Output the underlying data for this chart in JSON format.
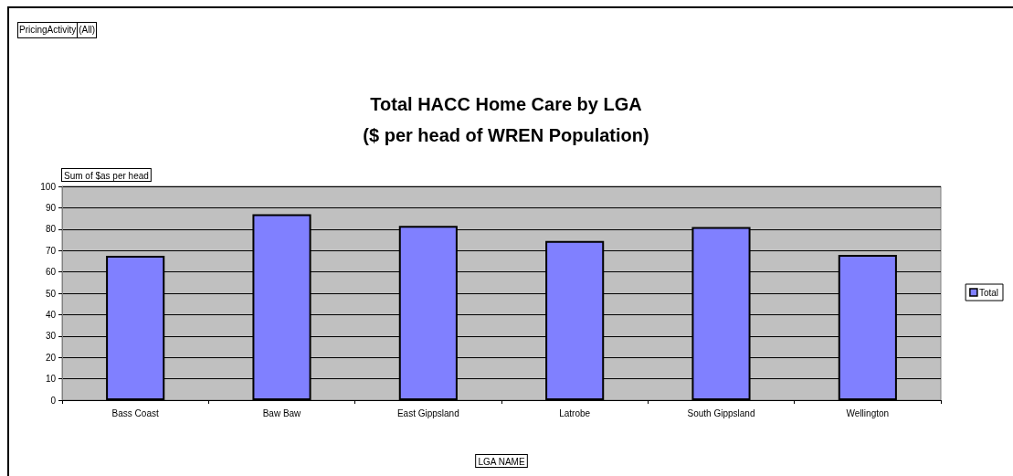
{
  "chart_data": {
    "type": "bar",
    "title": "Total HACC Home Care by LGA\n($ per head of WREN Population)",
    "annotations": [
      "PricingActivity",
      "(All)"
    ],
    "xlabel": "LGA NAME",
    "ylabel": "Sum of $as per head",
    "categories": [
      "Bass Coast",
      "Baw Baw",
      "East Gippsland",
      "Latrobe",
      "South Gippsland",
      "Wellington"
    ],
    "series": [
      {
        "name": "Total",
        "color": "#8080ff",
        "values": [
          67.5,
          87,
          81.5,
          74.5,
          81,
          68
        ]
      }
    ],
    "ylim": [
      0,
      100
    ],
    "yticks": [
      0,
      10,
      20,
      30,
      40,
      50,
      60,
      70,
      80,
      90,
      100
    ],
    "grid": "y",
    "legend": "right"
  }
}
